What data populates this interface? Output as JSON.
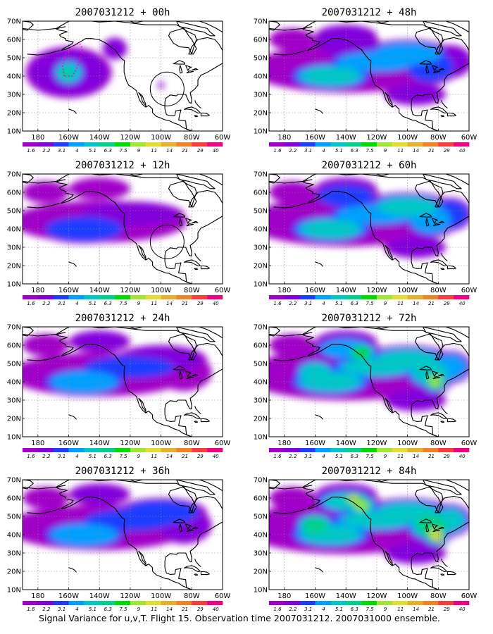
{
  "figure": {
    "caption": "Signal Variance for u,v,T. Flight 15. Observation time 2007031212. 2007031000 ensemble."
  },
  "axes": {
    "lat_labels": [
      "10N",
      "20N",
      "30N",
      "40N",
      "50N",
      "60N",
      "70N"
    ],
    "lat_values": [
      10,
      20,
      30,
      40,
      50,
      60,
      70
    ],
    "lon_labels": [
      "180",
      "160W",
      "140W",
      "120W",
      "100W",
      "80W",
      "60W"
    ],
    "lon_values": [
      180,
      160,
      140,
      120,
      100,
      80,
      60
    ],
    "lon_range_west": [
      190,
      60
    ],
    "lat_range": [
      10,
      70
    ]
  },
  "colorbar": {
    "labels": [
      "1.6",
      "2.2",
      "3.1",
      "4",
      "5.1",
      "6.3",
      "7.5",
      "9",
      "11",
      "14",
      "21",
      "29",
      "40"
    ],
    "colors": [
      "#a000c8",
      "#8200dc",
      "#1e3cff",
      "#00a0ff",
      "#00c8c8",
      "#00d28c",
      "#00dc00",
      "#a0e632",
      "#e6dc32",
      "#e6af2d",
      "#f08228",
      "#fa3c3c",
      "#f00082"
    ]
  },
  "panels": [
    {
      "title": "2007031212 + 00h",
      "intensity": 0,
      "target_circle": true,
      "flight_track": true
    },
    {
      "title": "2007031212 + 12h",
      "intensity": 1,
      "target_circle": true,
      "flight_track": false
    },
    {
      "title": "2007031212 + 24h",
      "intensity": 2,
      "target_circle": false,
      "flight_track": false
    },
    {
      "title": "2007031212 + 36h",
      "intensity": 3,
      "target_circle": false,
      "flight_track": false
    },
    {
      "title": "2007031212 + 48h",
      "intensity": 4,
      "target_circle": false,
      "flight_track": false
    },
    {
      "title": "2007031212 + 60h",
      "intensity": 5,
      "target_circle": false,
      "flight_track": false
    },
    {
      "title": "2007031212 + 72h",
      "intensity": 6,
      "target_circle": false,
      "flight_track": false
    },
    {
      "title": "2007031212 + 84h",
      "intensity": 7,
      "target_circle": false,
      "flight_track": false
    }
  ]
}
